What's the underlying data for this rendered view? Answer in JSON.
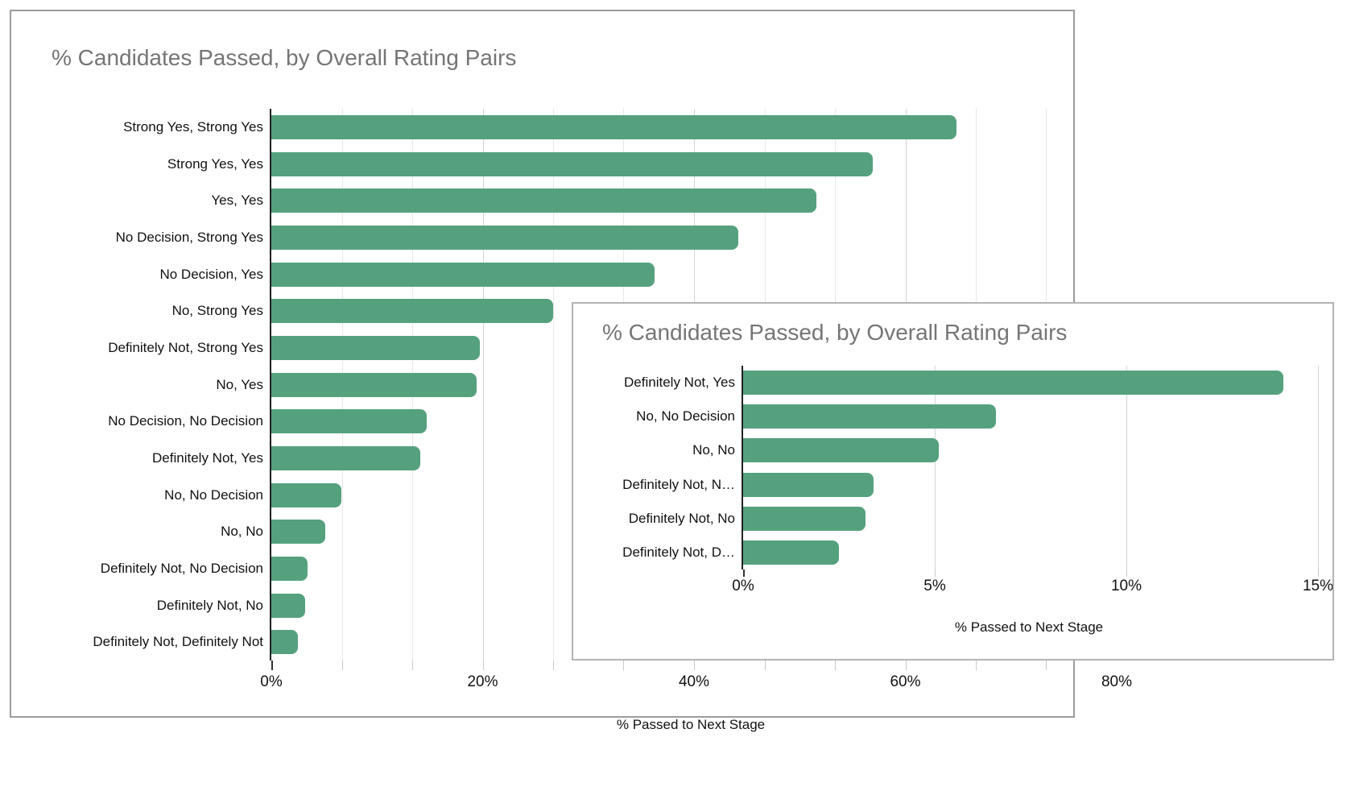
{
  "colors": {
    "bar": "#55a17e",
    "title_text": "#757575",
    "axis_line": "#212121",
    "gridline": "#e7e7e7",
    "gridline_major": "#d4d4d4",
    "outer_border": "#9c9c9c",
    "inset_border": "#b3b3b3"
  },
  "chart_data": [
    {
      "type": "bar",
      "orientation": "horizontal",
      "title": "% Candidates Passed, by Overall Rating Pairs",
      "xlabel": "% Passed to Next Stage",
      "ylabel": "",
      "categories": [
        "Strong Yes, Strong Yes",
        "Strong Yes, Yes",
        "Yes, Yes",
        "No Decision, Strong Yes",
        "No Decision, Yes",
        "No, Strong Yes",
        "Definitely Not, Strong Yes",
        "No, Yes",
        "No Decision, No Decision",
        "Definitely Not, Yes",
        "No, No Decision",
        "No, No",
        "Definitely Not, No Decision",
        "Definitely Not, No",
        "Definitely Not, Definitely Not"
      ],
      "values": [
        64.8,
        56.9,
        51.6,
        44.2,
        36.3,
        26.7,
        19.7,
        19.4,
        14.7,
        14.1,
        6.6,
        5.1,
        3.4,
        3.2,
        2.5
      ],
      "xlim": [
        0,
        80
      ],
      "x_tick_values": [
        0,
        20,
        40,
        60,
        80
      ],
      "x_tick_labels": [
        "0%",
        "20%",
        "40%",
        "60%",
        "80%"
      ],
      "minor_gridline_values": [
        6.67,
        13.33,
        20,
        26.67,
        33.33,
        40,
        46.67,
        53.33,
        60,
        66.67,
        73.33
      ],
      "grid": true,
      "legend": false,
      "bar_color": "#55a17e"
    },
    {
      "type": "bar",
      "orientation": "horizontal",
      "title": "% Candidates Passed, by Overall Rating Pairs",
      "xlabel": "% Passed to Next Stage",
      "ylabel": "",
      "categories": [
        "Definitely Not, Yes",
        "No, No Decision",
        "No, No",
        "Definitely Not, N…",
        "Definitely Not, No",
        "Definitely Not, D…"
      ],
      "values": [
        14.1,
        6.6,
        5.1,
        3.4,
        3.2,
        2.5
      ],
      "xlim": [
        0,
        15
      ],
      "x_tick_values": [
        0,
        5,
        10,
        15
      ],
      "x_tick_labels": [
        "0%",
        "5%",
        "10%",
        "15%"
      ],
      "minor_gridline_values": [
        5,
        10,
        15
      ],
      "grid": true,
      "legend": false,
      "bar_color": "#55a17e"
    }
  ]
}
